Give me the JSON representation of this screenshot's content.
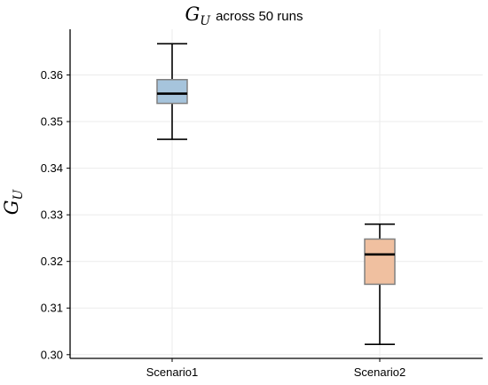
{
  "chart_data": {
    "type": "box",
    "title": {
      "symbol": "G",
      "subscript": "U",
      "text": "across 50 runs"
    },
    "ylabel": {
      "symbol": "G",
      "subscript": "U"
    },
    "xlabel": "",
    "categories": [
      "Scenario1",
      "Scenario2"
    ],
    "ylim": [
      0.2992,
      0.3698
    ],
    "yticks": [
      0.3,
      0.31,
      0.32,
      0.33,
      0.34,
      0.35,
      0.36
    ],
    "ytick_labels": [
      "0.30",
      "0.31",
      "0.32",
      "0.33",
      "0.34",
      "0.35",
      "0.36"
    ],
    "grid": true,
    "boxes": [
      {
        "category": "Scenario1",
        "whisker_low": 0.3462,
        "q1": 0.3539,
        "median": 0.356,
        "q3": 0.359,
        "whisker_high": 0.3667,
        "color": "#a6c4dc"
      },
      {
        "category": "Scenario2",
        "whisker_low": 0.3022,
        "q1": 0.3151,
        "median": 0.3215,
        "q3": 0.3248,
        "whisker_high": 0.328,
        "color": "#f0c0a0"
      }
    ]
  }
}
